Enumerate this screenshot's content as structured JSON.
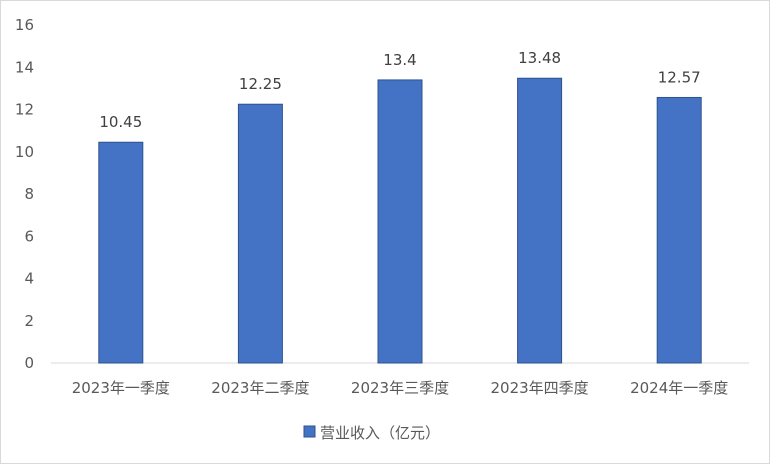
{
  "chart_data": {
    "type": "bar",
    "categories": [
      "2023年一季度",
      "2023年二季度",
      "2023年三季度",
      "2023年四季度",
      "2024年一季度"
    ],
    "series": [
      {
        "name": "营业收入（亿元）",
        "values": [
          10.45,
          12.25,
          13.4,
          13.48,
          12.57
        ]
      }
    ],
    "data_labels": [
      "10.45",
      "12.25",
      "13.4",
      "13.48",
      "12.57"
    ],
    "ylim": [
      0,
      16
    ],
    "yticks": [
      0,
      2,
      4,
      6,
      8,
      10,
      12,
      14,
      16
    ],
    "grid": false,
    "legend_position": "bottom",
    "bar_color": "#4472c4",
    "bar_edge_color": "#2f528f"
  }
}
